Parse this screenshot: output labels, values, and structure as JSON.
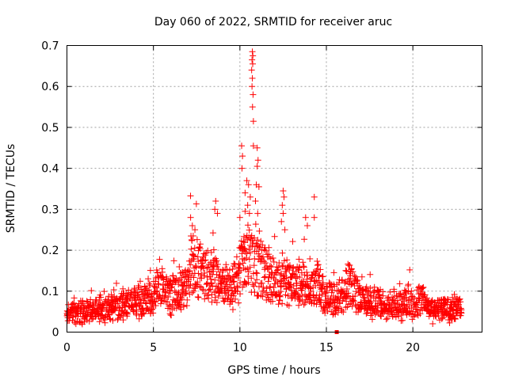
{
  "chart_data": {
    "type": "scatter",
    "title": "Day 060 of 2022, SRMTID for receiver aruc",
    "xlabel": "GPS time / hours",
    "ylabel": "SRMTID / TECUs",
    "xlim": [
      0,
      24
    ],
    "ylim": [
      0,
      0.7
    ],
    "xticks": [
      0,
      5,
      10,
      15,
      20
    ],
    "xtick_labels": [
      "0",
      "5",
      "10",
      "15",
      "20"
    ],
    "yticks": [
      0,
      0.1,
      0.2,
      0.3,
      0.4,
      0.5,
      0.6,
      0.7
    ],
    "ytick_labels": [
      "0",
      "0.1",
      "0.2",
      "0.3",
      "0.4",
      "0.5",
      "0.6",
      "0.7"
    ],
    "grid": true,
    "marker": "+",
    "color": "#ff0000",
    "series": [
      {
        "name": "SRMTID",
        "baseline_profile": {
          "x": [
            0,
            1,
            2,
            3,
            4,
            5,
            5.3,
            6,
            7,
            7.2,
            8,
            8.5,
            9,
            9.5,
            10,
            10.5,
            11,
            11.5,
            12,
            12.5,
            13,
            13.5,
            14,
            14.5,
            15,
            16,
            16.3,
            17,
            18,
            19,
            20,
            20.5,
            21,
            22,
            22.8
          ],
          "y": [
            0.045,
            0.05,
            0.055,
            0.06,
            0.075,
            0.08,
            0.12,
            0.09,
            0.11,
            0.17,
            0.14,
            0.13,
            0.12,
            0.1,
            0.14,
            0.18,
            0.17,
            0.14,
            0.12,
            0.13,
            0.11,
            0.12,
            0.1,
            0.12,
            0.08,
            0.09,
            0.12,
            0.08,
            0.07,
            0.065,
            0.065,
            0.08,
            0.05,
            0.055,
            0.06
          ]
        },
        "outliers": [
          {
            "x": 10.72,
            "y": 0.685
          },
          {
            "x": 10.75,
            "y": 0.675
          },
          {
            "x": 10.7,
            "y": 0.665
          },
          {
            "x": 10.74,
            "y": 0.655
          },
          {
            "x": 10.68,
            "y": 0.64
          },
          {
            "x": 10.72,
            "y": 0.62
          },
          {
            "x": 10.7,
            "y": 0.6
          },
          {
            "x": 10.76,
            "y": 0.58
          },
          {
            "x": 10.73,
            "y": 0.55
          },
          {
            "x": 10.78,
            "y": 0.515
          },
          {
            "x": 10.78,
            "y": 0.455
          },
          {
            "x": 11.0,
            "y": 0.45
          },
          {
            "x": 10.1,
            "y": 0.455
          },
          {
            "x": 10.15,
            "y": 0.43
          },
          {
            "x": 10.12,
            "y": 0.4
          },
          {
            "x": 11.05,
            "y": 0.42
          },
          {
            "x": 11.0,
            "y": 0.405
          },
          {
            "x": 10.4,
            "y": 0.37
          },
          {
            "x": 10.5,
            "y": 0.36
          },
          {
            "x": 10.95,
            "y": 0.36
          },
          {
            "x": 11.1,
            "y": 0.355
          },
          {
            "x": 10.3,
            "y": 0.34
          },
          {
            "x": 10.6,
            "y": 0.33
          },
          {
            "x": 10.9,
            "y": 0.32
          },
          {
            "x": 10.45,
            "y": 0.31
          },
          {
            "x": 10.3,
            "y": 0.295
          },
          {
            "x": 12.5,
            "y": 0.345
          },
          {
            "x": 12.55,
            "y": 0.33
          },
          {
            "x": 12.45,
            "y": 0.31
          },
          {
            "x": 12.5,
            "y": 0.29
          },
          {
            "x": 12.4,
            "y": 0.27
          },
          {
            "x": 14.3,
            "y": 0.33
          },
          {
            "x": 13.8,
            "y": 0.28
          },
          {
            "x": 13.9,
            "y": 0.26
          },
          {
            "x": 14.3,
            "y": 0.28
          },
          {
            "x": 8.6,
            "y": 0.32
          },
          {
            "x": 8.55,
            "y": 0.3
          },
          {
            "x": 8.7,
            "y": 0.29
          },
          {
            "x": 7.15,
            "y": 0.28
          },
          {
            "x": 7.25,
            "y": 0.26
          },
          {
            "x": 7.4,
            "y": 0.25
          },
          {
            "x": 7.3,
            "y": 0.235
          },
          {
            "x": 12.6,
            "y": 0.25
          },
          {
            "x": 10.0,
            "y": 0.28
          },
          {
            "x": 10.55,
            "y": 0.29
          }
        ],
        "square_markers": [
          {
            "x": 15.6,
            "y": 0.0
          }
        ]
      }
    ]
  }
}
